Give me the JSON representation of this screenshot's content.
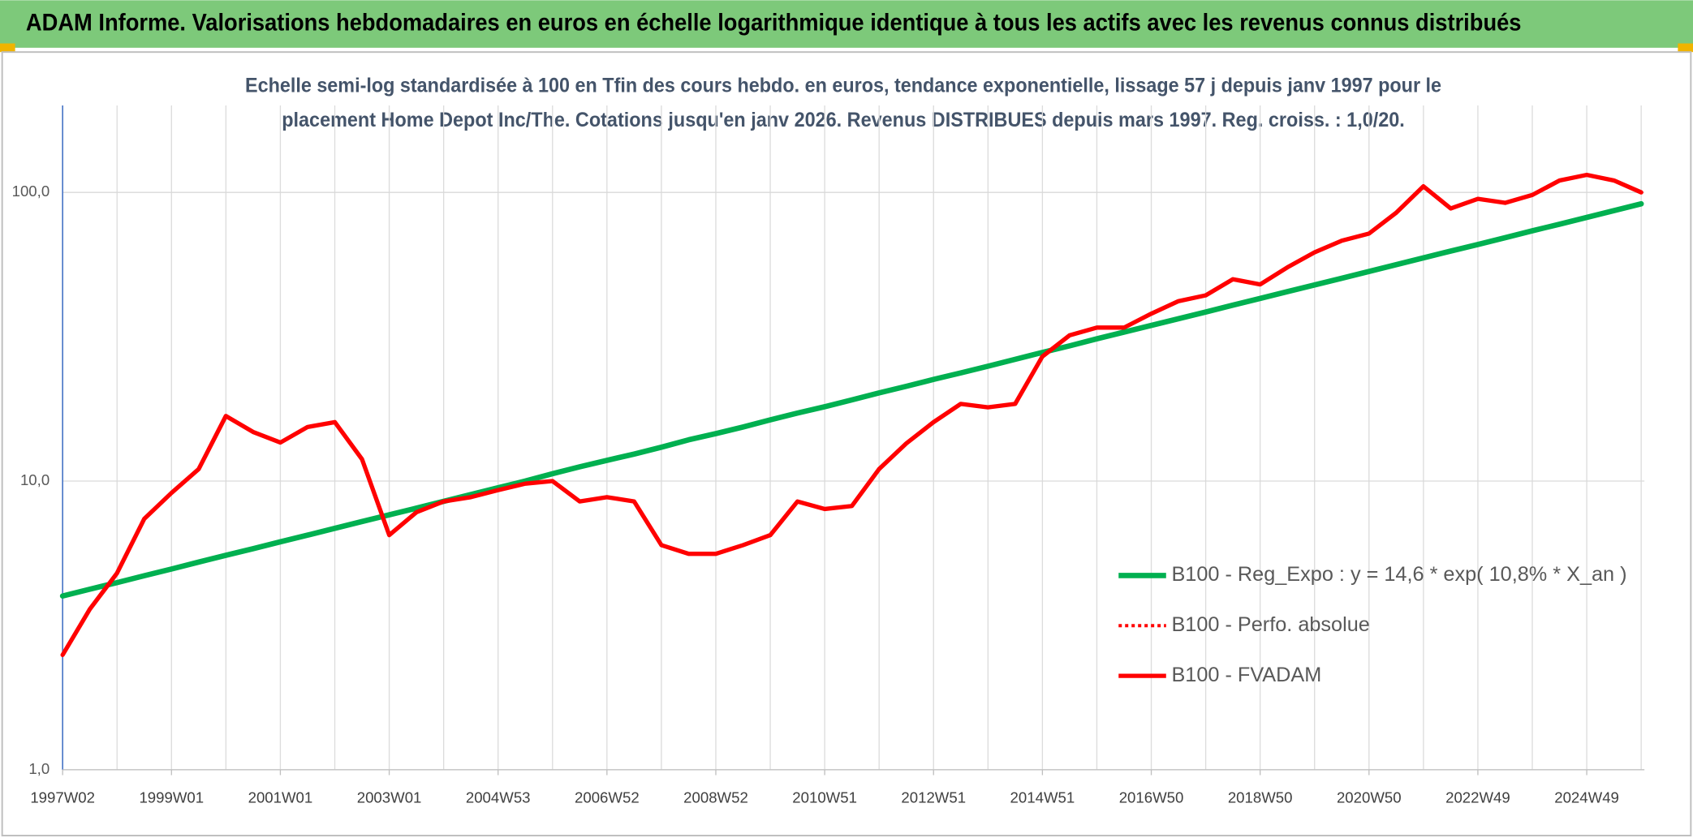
{
  "chart_data": {
    "type": "line",
    "title": "ADAM Informe. Valorisations hebdomadaires en euros en échelle logarithmique identique à tous les actifs avec les revenus connus distribués",
    "subtitle": [
      "Echelle semi-log standardisée à 100 en Tfin des cours hebdo. en euros, tendance exponentielle, lissage 57 j depuis janv 1997 pour le",
      "placement Home Depot Inc/The. Cotations jusqu'en janv 2026. Revenus DISTRIBUES depuis mars 1997. Reg. croiss. : 1,0/20."
    ],
    "categories": [
      "1997W02",
      null,
      null,
      null,
      "1999W01",
      null,
      null,
      null,
      "2001W01",
      null,
      null,
      null,
      "2003W01",
      null,
      null,
      null,
      "2004W53",
      null,
      null,
      null,
      "2006W52",
      null,
      null,
      null,
      "2008W52",
      null,
      null,
      null,
      "2010W51",
      null,
      null,
      null,
      "2012W51",
      null,
      null,
      null,
      "2014W51",
      null,
      null,
      null,
      "2016W50",
      null,
      null,
      null,
      "2018W50",
      null,
      null,
      null,
      "2020W50",
      null,
      null,
      null,
      "2022W49",
      null,
      null,
      null,
      "2024W49",
      null,
      null
    ],
    "series": [
      {
        "name": "B100 - Reg_Expo : y = 14,6 * exp( 10,8% *  X_an )",
        "color": "#00b050",
        "line_style": "solid",
        "width": 5,
        "values": [
          4.0,
          4.22,
          4.45,
          4.7,
          4.96,
          5.24,
          5.53,
          5.83,
          6.16,
          6.5,
          6.86,
          7.24,
          7.64,
          8.06,
          8.51,
          8.98,
          9.48,
          10.0,
          10.6,
          11.2,
          11.8,
          12.4,
          13.1,
          13.9,
          14.6,
          15.4,
          16.3,
          17.2,
          18.1,
          19.1,
          20.2,
          21.3,
          22.5,
          23.7,
          25.0,
          26.4,
          27.9,
          29.4,
          31.1,
          32.8,
          34.6,
          36.5,
          38.5,
          40.7,
          42.9,
          45.3,
          47.8,
          50.4,
          53.2,
          56.2,
          59.3,
          62.6,
          66.0,
          69.7,
          73.6,
          77.6,
          81.9,
          86.5,
          91.3
        ]
      },
      {
        "name": "B100 - Perfo. absolue",
        "color": "#ff0000",
        "line_style": "dotted",
        "width": 3,
        "values": [
          2.5,
          3.6,
          4.8,
          7.4,
          9.1,
          11,
          16.8,
          14.8,
          13.6,
          15.4,
          16,
          11.9,
          6.5,
          7.8,
          8.5,
          8.8,
          9.3,
          9.8,
          10,
          8.5,
          8.8,
          8.5,
          6,
          5.6,
          5.6,
          6,
          6.5,
          8.5,
          8,
          8.2,
          11,
          13.5,
          16,
          18.5,
          18,
          18.5,
          27,
          32,
          34,
          34,
          38,
          42,
          44,
          50,
          48,
          55,
          62,
          68,
          72,
          85,
          105,
          88,
          95,
          92,
          98,
          110,
          115,
          110,
          100
        ]
      },
      {
        "name": "B100 - FVADAM",
        "color": "#ff0000",
        "line_style": "solid",
        "width": 4,
        "values": [
          2.5,
          3.6,
          4.8,
          7.4,
          9.1,
          11,
          16.8,
          14.8,
          13.6,
          15.4,
          16,
          11.9,
          6.5,
          7.8,
          8.5,
          8.8,
          9.3,
          9.8,
          10,
          8.5,
          8.8,
          8.5,
          6,
          5.6,
          5.6,
          6,
          6.5,
          8.5,
          8,
          8.2,
          11,
          13.5,
          16,
          18.5,
          18,
          18.5,
          27,
          32,
          34,
          34,
          38,
          42,
          44,
          50,
          48,
          55,
          62,
          68,
          72,
          85,
          105,
          88,
          95,
          92,
          98,
          110,
          115,
          110,
          100
        ]
      }
    ],
    "ylim": [
      1,
      200
    ],
    "yticks": [
      {
        "value": 1,
        "label": "1,0"
      },
      {
        "value": 10,
        "label": "10,0"
      },
      {
        "value": 100,
        "label": "100,0"
      }
    ],
    "log_scale": true,
    "grid": true,
    "legend_position": "right"
  }
}
